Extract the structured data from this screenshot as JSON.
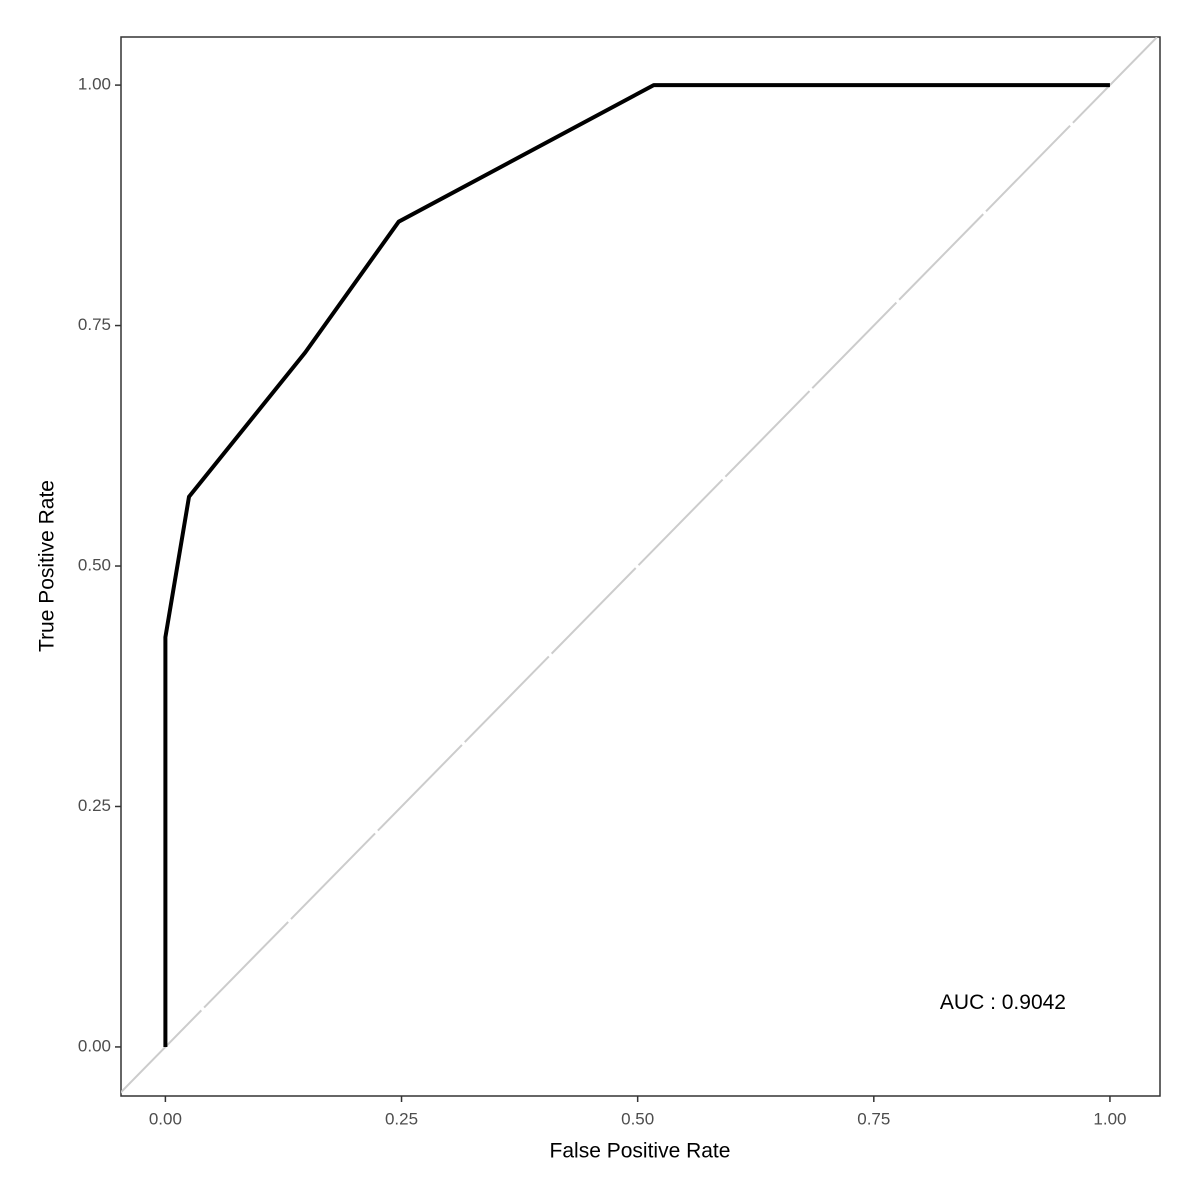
{
  "chart_data": {
    "type": "line",
    "x_label": "False Positive Rate",
    "y_label": "True Positive Rate",
    "annotation": "AUC : 0.9042",
    "x": [
      0,
      0,
      0.025,
      0.148,
      0.247,
      0.517,
      1
    ],
    "series": [
      {
        "color": "#000000",
        "values": [
          0,
          0.426,
          0.572,
          0.722,
          0.858,
          1,
          1
        ]
      }
    ],
    "xlim": [
      -0.047,
      1.053
    ],
    "ylim": [
      -0.051,
      1.05
    ],
    "xticks": [
      {
        "value": 0,
        "label": "0.00"
      },
      {
        "value": 0.25,
        "label": "0.25"
      },
      {
        "value": 0.5,
        "label": "0.50"
      },
      {
        "value": 0.75,
        "label": "0.75"
      },
      {
        "value": 1,
        "label": "1.00"
      }
    ],
    "yticks": [
      {
        "value": 0,
        "label": "0.00"
      },
      {
        "value": 0.25,
        "label": "0.25"
      },
      {
        "value": 0.5,
        "label": "0.50"
      },
      {
        "value": 0.75,
        "label": "0.75"
      },
      {
        "value": 1,
        "label": "1.00"
      }
    ],
    "grid": false
  }
}
